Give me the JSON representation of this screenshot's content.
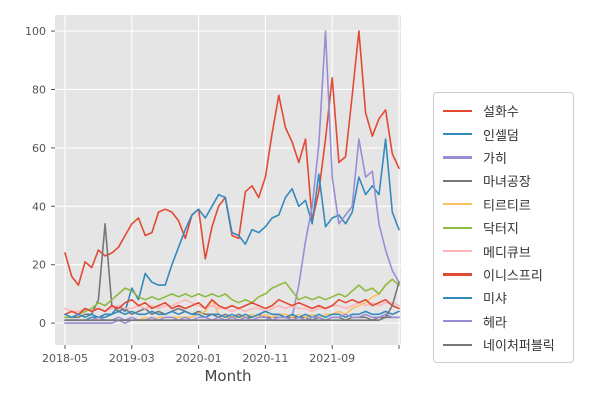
{
  "figure": {
    "plot_background": "#e5e5e5",
    "grid_color": "#ffffff",
    "tick_color": "#555555",
    "axis_label_color": "#444444",
    "legend_border_color": "#cccccc",
    "legend_background": "#ffffff"
  },
  "chart_data": {
    "type": "line",
    "title": "",
    "xlabel": "Month",
    "ylabel": "",
    "grid": true,
    "legend_position": "right of plot",
    "ylim": [
      -7.5,
      105.5
    ],
    "yticks": [
      0,
      20,
      40,
      60,
      80,
      100
    ],
    "xtick_positions": [
      0,
      10,
      20,
      30,
      40,
      50
    ],
    "xtick_labels": [
      "2018-05",
      "2019-03",
      "2020-01",
      "2020-11",
      "2021-09",
      ""
    ],
    "x": [
      "2018-05",
      "2018-06",
      "2018-07",
      "2018-08",
      "2018-09",
      "2018-10",
      "2018-11",
      "2018-12",
      "2019-01",
      "2019-02",
      "2019-03",
      "2019-04",
      "2019-05",
      "2019-06",
      "2019-07",
      "2019-08",
      "2019-09",
      "2019-10",
      "2019-11",
      "2019-12",
      "2020-01",
      "2020-02",
      "2020-03",
      "2020-04",
      "2020-05",
      "2020-06",
      "2020-07",
      "2020-08",
      "2020-09",
      "2020-10",
      "2020-11",
      "2020-12",
      "2021-01",
      "2021-02",
      "2021-03",
      "2021-04",
      "2021-05",
      "2021-06",
      "2021-07",
      "2021-08",
      "2021-09",
      "2021-10",
      "2021-11",
      "2021-12",
      "2022-01",
      "2022-02",
      "2022-03",
      "2022-04",
      "2022-05",
      "2022-06",
      "2022-07"
    ],
    "series": [
      {
        "name": "설화수",
        "color": "#E24A33",
        "values": [
          24,
          16,
          13,
          21,
          19,
          25,
          23,
          24,
          26,
          30,
          34,
          36,
          30,
          31,
          38,
          39,
          38,
          35,
          29,
          37,
          39,
          22,
          33,
          40,
          43,
          30,
          29,
          45,
          47,
          43,
          50,
          65,
          78,
          67,
          62,
          55,
          63,
          35,
          45,
          63,
          84,
          55,
          57,
          78,
          100,
          72,
          64,
          70,
          73,
          58,
          53
        ]
      },
      {
        "name": "인셀덤",
        "color": "#348ABD",
        "values": [
          1,
          1,
          1,
          1,
          2,
          2,
          2,
          3,
          6,
          4,
          12,
          8,
          17,
          14,
          13,
          13,
          20,
          26,
          32,
          37,
          39,
          36,
          40,
          44,
          43,
          31,
          30,
          27,
          32,
          31,
          33,
          36,
          37,
          43,
          46,
          40,
          42,
          34,
          51,
          33,
          36,
          37,
          34,
          38,
          50,
          44,
          47,
          44,
          63,
          38,
          32
        ]
      },
      {
        "name": "가히",
        "color": "#988ED5",
        "values": [
          0,
          0,
          0,
          0,
          0,
          0,
          0,
          0,
          1,
          0,
          1,
          1,
          1,
          1,
          1,
          1,
          1,
          1,
          1,
          1,
          1,
          1,
          1,
          1,
          1,
          1,
          1,
          1,
          1,
          1,
          1,
          2,
          2,
          2,
          2,
          13,
          28,
          40,
          61,
          100,
          50,
          34,
          37,
          40,
          63,
          50,
          52,
          34,
          25,
          18,
          14
        ]
      },
      {
        "name": "마녀공장",
        "color": "#777777",
        "values": [
          2,
          2,
          2,
          3,
          3,
          8,
          34,
          6,
          4,
          5,
          3,
          4,
          5,
          3,
          4,
          3,
          4,
          5,
          4,
          3,
          4,
          3,
          3,
          2,
          3,
          2,
          3,
          2,
          2,
          3,
          2,
          2,
          3,
          2,
          2,
          2,
          2,
          1,
          2,
          1,
          2,
          2,
          1,
          2,
          2,
          2,
          1,
          2,
          2,
          2,
          2
        ]
      },
      {
        "name": "티르티르",
        "color": "#FBC15E",
        "values": [
          1,
          1,
          1,
          1,
          1,
          1,
          1,
          1,
          1,
          1,
          1,
          1,
          2,
          1,
          2,
          2,
          2,
          2,
          2,
          2,
          3,
          4,
          8,
          3,
          2,
          2,
          2,
          2,
          3,
          2,
          3,
          2,
          3,
          3,
          2,
          3,
          2,
          3,
          2,
          3,
          3,
          4,
          3,
          5,
          6,
          7,
          9,
          10,
          13,
          15,
          13
        ]
      },
      {
        "name": "닥터지",
        "color": "#8EBA42",
        "values": [
          2,
          2,
          3,
          4,
          5,
          7,
          6,
          8,
          10,
          12,
          11,
          9,
          8,
          9,
          8,
          9,
          10,
          9,
          10,
          9,
          10,
          9,
          10,
          9,
          10,
          8,
          7,
          8,
          7,
          9,
          10,
          12,
          13,
          14,
          11,
          8,
          9,
          8,
          9,
          8,
          9,
          10,
          9,
          11,
          13,
          11,
          12,
          10,
          13,
          15,
          13
        ]
      },
      {
        "name": "메디큐브",
        "color": "#FFB5B8",
        "values": [
          5,
          4,
          4,
          5,
          4,
          5,
          4,
          5,
          6,
          5,
          5,
          6,
          5,
          6,
          5,
          6,
          6,
          7,
          8,
          7,
          6,
          5,
          6,
          5,
          5,
          4,
          5,
          4,
          5,
          5,
          4,
          5,
          6,
          5,
          6,
          5,
          5,
          4,
          5,
          5,
          6,
          6,
          5,
          6,
          7,
          6,
          7,
          6,
          7,
          7,
          6
        ]
      },
      {
        "name": "이니스프리",
        "color": "#E24A33",
        "values": [
          3,
          4,
          3,
          5,
          4,
          5,
          4,
          6,
          5,
          7,
          8,
          6,
          7,
          5,
          6,
          7,
          5,
          6,
          5,
          6,
          7,
          5,
          8,
          6,
          5,
          6,
          5,
          6,
          7,
          6,
          5,
          6,
          8,
          7,
          6,
          7,
          6,
          5,
          6,
          5,
          6,
          8,
          7,
          8,
          7,
          8,
          6,
          7,
          8,
          6,
          5
        ]
      },
      {
        "name": "미샤",
        "color": "#348ABD",
        "values": [
          3,
          2,
          3,
          2,
          3,
          2,
          3,
          3,
          4,
          3,
          4,
          3,
          3,
          4,
          3,
          3,
          4,
          3,
          4,
          3,
          3,
          2,
          3,
          3,
          2,
          3,
          2,
          3,
          2,
          3,
          4,
          3,
          3,
          2,
          3,
          2,
          3,
          2,
          3,
          2,
          3,
          3,
          2,
          3,
          3,
          4,
          3,
          3,
          4,
          3,
          4
        ]
      },
      {
        "name": "헤라",
        "color": "#988ED5",
        "values": [
          1,
          1,
          1,
          1,
          1,
          2,
          1,
          1,
          2,
          1,
          2,
          1,
          1,
          2,
          1,
          2,
          2,
          1,
          2,
          1,
          2,
          2,
          1,
          2,
          1,
          2,
          1,
          2,
          1,
          2,
          2,
          1,
          2,
          2,
          1,
          2,
          1,
          2,
          2,
          1,
          2,
          2,
          3,
          2,
          2,
          3,
          2,
          2,
          3,
          2,
          2
        ]
      },
      {
        "name": "네이처퍼블릭",
        "color": "#777777",
        "values": [
          1,
          1,
          1,
          1,
          1,
          1,
          1,
          1,
          1,
          1,
          1,
          1,
          1,
          1,
          1,
          1,
          1,
          1,
          1,
          1,
          1,
          1,
          1,
          1,
          1,
          1,
          1,
          1,
          1,
          1,
          1,
          1,
          1,
          1,
          1,
          1,
          1,
          1,
          1,
          1,
          1,
          1,
          1,
          1,
          1,
          1,
          1,
          1,
          2,
          6,
          14
        ]
      }
    ]
  }
}
